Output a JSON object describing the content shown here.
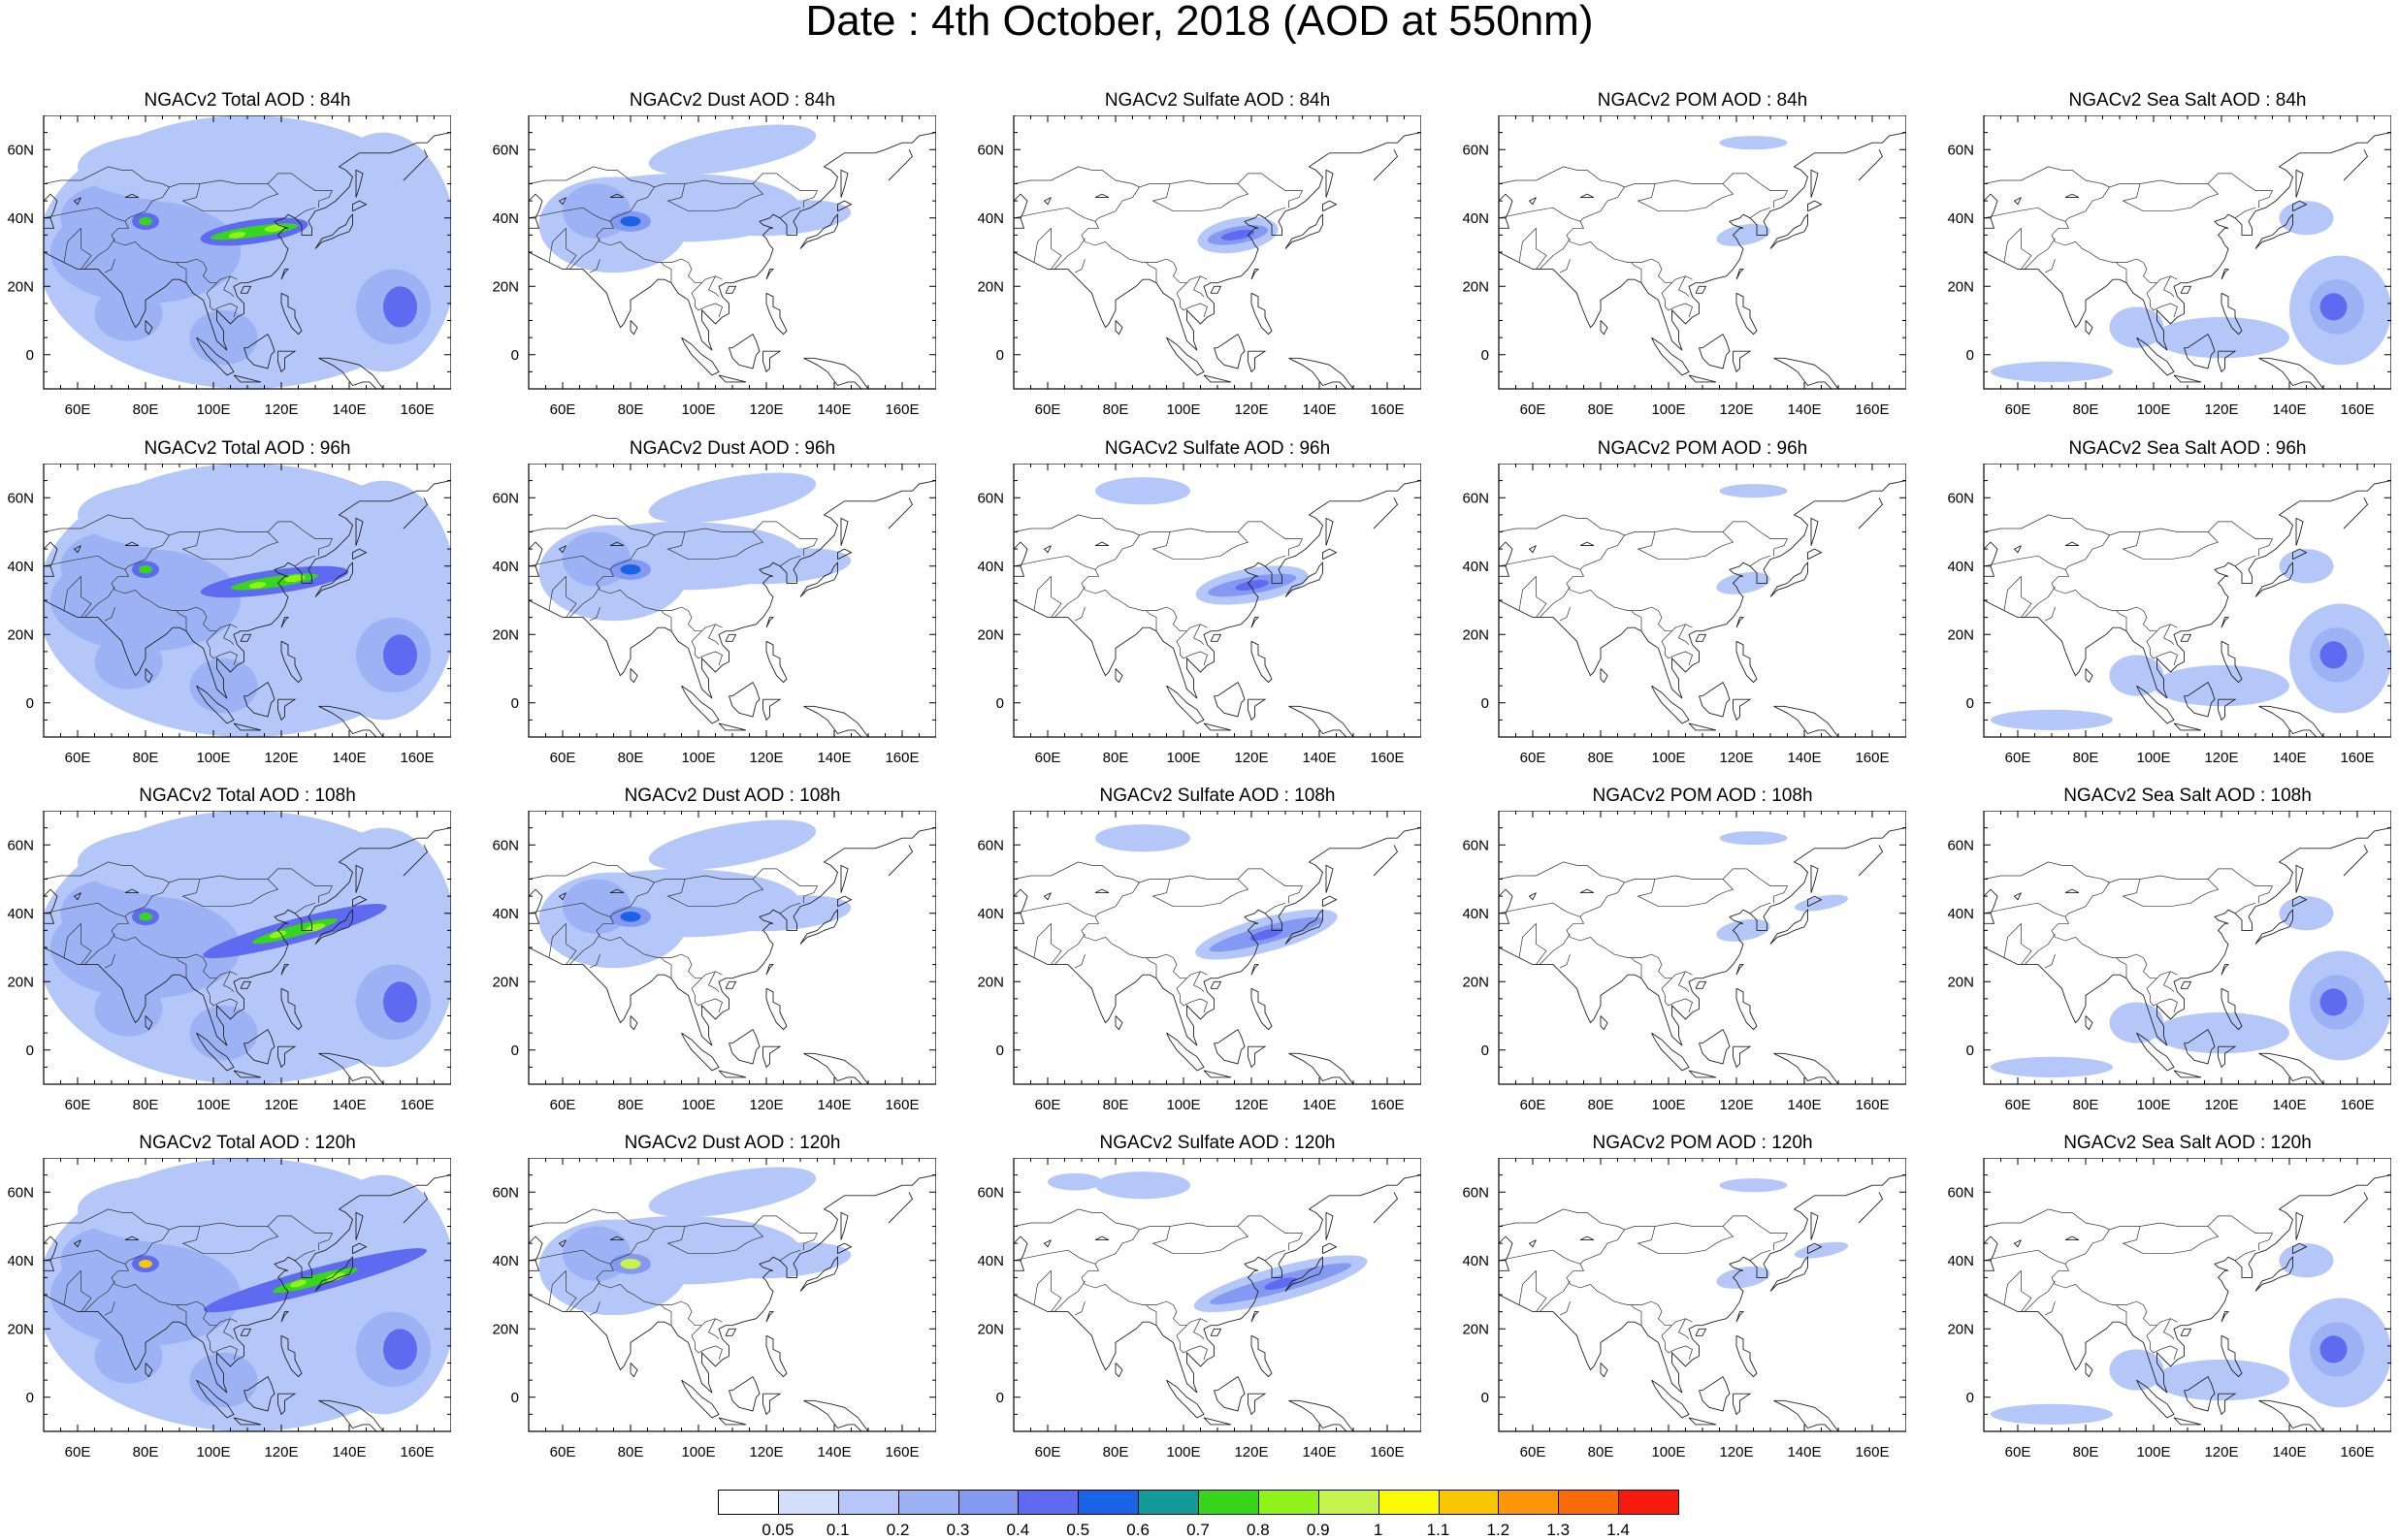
{
  "title": "Date : 4th October, 2018 (AOD at 550nm)",
  "map": {
    "lon_range": [
      50,
      170
    ],
    "lat_range": [
      -10,
      70
    ],
    "lon_ticks": [
      "60E",
      "80E",
      "100E",
      "120E",
      "140E",
      "160E"
    ],
    "lat_ticks": [
      "60N",
      "40N",
      "20N",
      "0"
    ]
  },
  "panels": [
    [
      "NGACv2 Total AOD : 84h",
      "NGACv2 Dust AOD : 84h",
      "NGACv2 Sulfate AOD : 84h",
      "NGACv2 POM AOD : 84h",
      "NGACv2 Sea Salt AOD : 84h"
    ],
    [
      "NGACv2 Total AOD : 96h",
      "NGACv2 Dust AOD : 96h",
      "NGACv2 Sulfate AOD : 96h",
      "NGACv2 POM AOD : 96h",
      "NGACv2 Sea Salt AOD : 96h"
    ],
    [
      "NGACv2 Total AOD : 108h",
      "NGACv2 Dust AOD : 108h",
      "NGACv2 Sulfate AOD : 108h",
      "NGACv2 POM AOD : 108h",
      "NGACv2 Sea Salt AOD : 108h"
    ],
    [
      "NGACv2 Total AOD : 120h",
      "NGACv2 Dust AOD : 120h",
      "NGACv2 Sulfate AOD : 120h",
      "NGACv2 POM AOD : 120h",
      "NGACv2 Sea Salt  AOD : 120h"
    ]
  ],
  "colorbar": {
    "labels": [
      "0.05",
      "0.1",
      "0.2",
      "0.3",
      "0.4",
      "0.5",
      "0.6",
      "0.7",
      "0.8",
      "0.9",
      "1",
      "1.1",
      "1.2",
      "1.3",
      "1.4"
    ],
    "colors": [
      "#ffffff",
      "#d3defb",
      "#b5c7f8",
      "#9cb2f5",
      "#8399f2",
      "#5e6bf0",
      "#1b63e6",
      "#139b9b",
      "#37d51c",
      "#8ff218",
      "#c6f44d",
      "#fafa00",
      "#fbc702",
      "#fa9607",
      "#f86b08",
      "#f51a0c"
    ]
  },
  "chart_data": {
    "type": "heatmap",
    "title": "Date : 4th October, 2018 (AOD at 550nm)",
    "forecast_hours": [
      "84h",
      "96h",
      "108h",
      "120h"
    ],
    "species": [
      "Total",
      "Dust",
      "Sulfate",
      "POM",
      "Sea Salt"
    ],
    "variable": "AOD at 550nm",
    "x_axis": {
      "range": [
        50,
        170
      ],
      "ticks": [
        60,
        80,
        100,
        120,
        140,
        160
      ]
    },
    "y_axis": {
      "range": [
        -10,
        70
      ],
      "ticks": [
        60,
        40,
        20,
        0
      ]
    },
    "color_levels": [
      0.05,
      0.1,
      0.2,
      0.3,
      0.4,
      0.5,
      0.6,
      0.7,
      0.8,
      0.9,
      1,
      1.1,
      1.2,
      1.3,
      1.4
    ],
    "plumes": [
      {
        "species": "Total",
        "hour": "84h",
        "lon": 80,
        "lat": 39,
        "level": 0.55
      },
      {
        "species": "Total",
        "hour": "84h",
        "lon": 117,
        "lat": 37,
        "level": 0.7
      },
      {
        "species": "Total",
        "hour": "84h",
        "lon": 153,
        "lat": 12,
        "level": 0.3
      },
      {
        "species": "Dust",
        "hour": "84h",
        "lon": 80,
        "lat": 39,
        "level": 0.5
      },
      {
        "species": "Sulfate",
        "hour": "84h",
        "lon": 115,
        "lat": 35,
        "level": 0.4
      },
      {
        "species": "Sea Salt",
        "hour": "84h",
        "lon": 153,
        "lat": 12,
        "level": 0.3
      },
      {
        "species": "Total",
        "hour": "96h",
        "lon": 80,
        "lat": 39,
        "level": 0.65
      },
      {
        "species": "Total",
        "hour": "96h",
        "lon": 120,
        "lat": 38,
        "level": 0.75
      },
      {
        "species": "Dust",
        "hour": "96h",
        "lon": 80,
        "lat": 39,
        "level": 0.55
      },
      {
        "species": "Sulfate",
        "hour": "96h",
        "lon": 118,
        "lat": 36,
        "level": 0.45
      },
      {
        "species": "Sea Salt",
        "hour": "96h",
        "lon": 153,
        "lat": 15,
        "level": 0.3
      },
      {
        "species": "Total",
        "hour": "108h",
        "lon": 80,
        "lat": 39,
        "level": 0.7
      },
      {
        "species": "Total",
        "hour": "108h",
        "lon": 125,
        "lat": 36,
        "level": 0.8
      },
      {
        "species": "Dust",
        "hour": "108h",
        "lon": 80,
        "lat": 39,
        "level": 0.6
      },
      {
        "species": "Sulfate",
        "hour": "108h",
        "lon": 122,
        "lat": 35,
        "level": 0.45
      },
      {
        "species": "Sea Salt",
        "hour": "108h",
        "lon": 155,
        "lat": 17,
        "level": 0.3
      },
      {
        "species": "Total",
        "hour": "120h",
        "lon": 80,
        "lat": 39,
        "level": 1.1
      },
      {
        "species": "Total",
        "hour": "120h",
        "lon": 125,
        "lat": 33,
        "level": 0.8
      },
      {
        "species": "Dust",
        "hour": "120h",
        "lon": 80,
        "lat": 39,
        "level": 1.0
      },
      {
        "species": "Sulfate",
        "hour": "120h",
        "lon": 125,
        "lat": 33,
        "level": 0.5
      },
      {
        "species": "Sea Salt",
        "hour": "120h",
        "lon": 150,
        "lat": 18,
        "level": 0.35
      }
    ]
  }
}
